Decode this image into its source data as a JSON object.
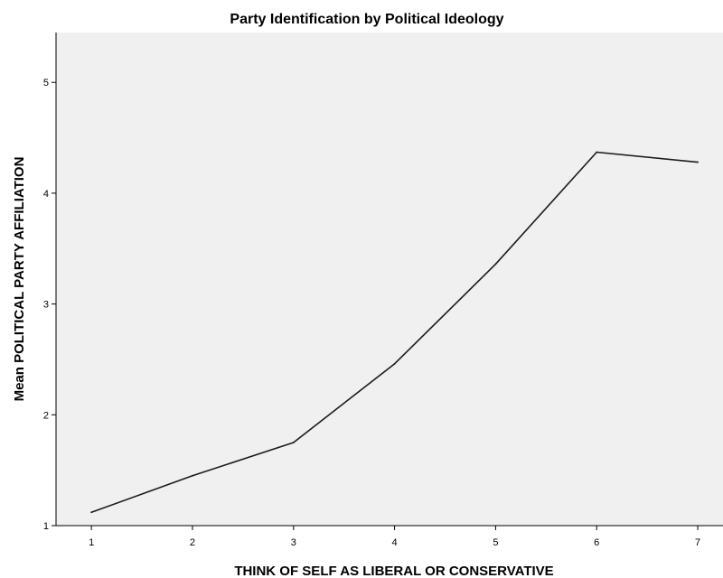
{
  "chart_data": {
    "type": "line",
    "title": "Party Identification by Political Ideology",
    "xlabel": "THINK OF SELF AS LIBERAL OR CONSERVATIVE",
    "ylabel": "Mean POLITICAL PARTY AFFILIATION",
    "x": [
      1,
      2,
      3,
      4,
      5,
      6,
      7
    ],
    "x_tick_labels": [
      "1",
      "2",
      "3",
      "4",
      "5",
      "6",
      "7"
    ],
    "y_ticks": [
      1,
      2,
      3,
      4,
      5
    ],
    "y_tick_labels": [
      "1",
      "2",
      "3",
      "4",
      "5"
    ],
    "xlim": [
      0.65,
      7.25
    ],
    "ylim": [
      1,
      5.45
    ],
    "grid": false,
    "series": [
      {
        "values": [
          1.12,
          1.45,
          1.75,
          2.46,
          3.36,
          4.37,
          4.28
        ]
      }
    ],
    "colors": {
      "plot_background": "#f0f0f0",
      "line": "#1a1a1a",
      "axis": "#000000"
    }
  }
}
